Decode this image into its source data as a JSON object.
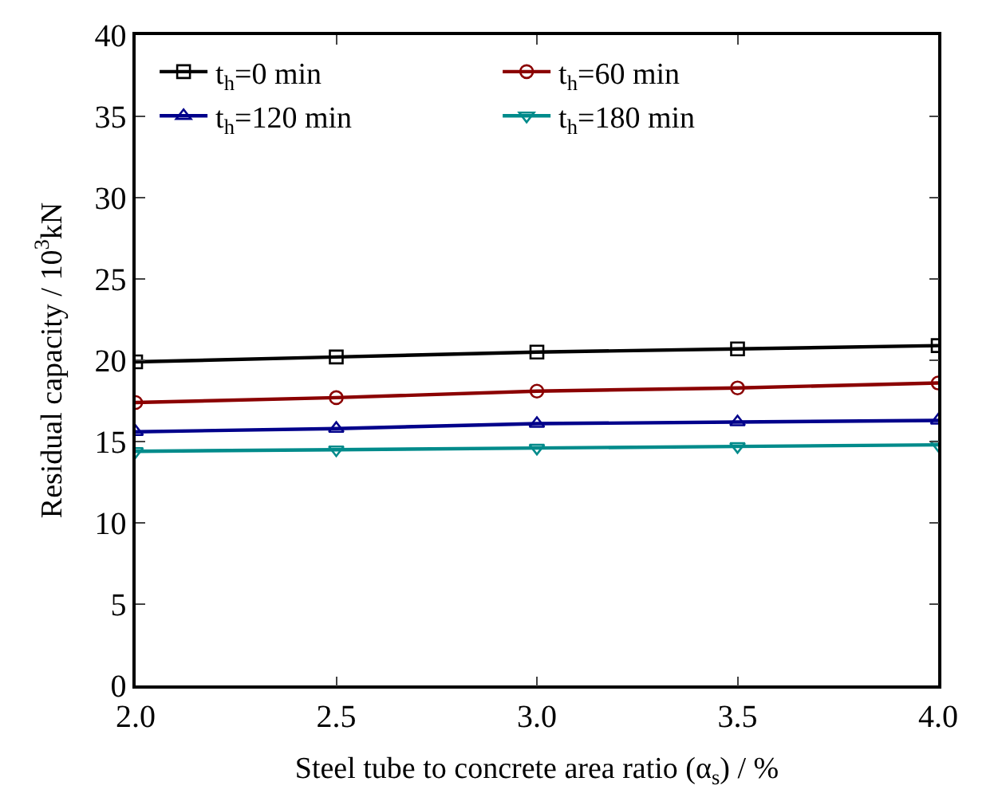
{
  "chart_data": {
    "type": "line",
    "xlabel": "Steel tube to concrete area ratio (α$_{s}$) / %",
    "ylabel": "Residual capacity / 10$^{3}$kN",
    "x": [
      2.0,
      2.5,
      3.0,
      3.5,
      4.0
    ],
    "series": [
      {
        "name": "t$_{h}$=0 min",
        "color": "#000000",
        "marker": "square",
        "values": [
          19.9,
          20.2,
          20.5,
          20.7,
          20.9
        ]
      },
      {
        "name": "t$_{h}$=60 min",
        "color": "#8b0000",
        "marker": "circle",
        "values": [
          17.4,
          17.7,
          18.1,
          18.3,
          18.6
        ]
      },
      {
        "name": "t$_{h}$=120 min",
        "color": "#00008b",
        "marker": "triangle",
        "values": [
          15.6,
          15.8,
          16.1,
          16.2,
          16.3
        ]
      },
      {
        "name": "t$_{h}$=180 min",
        "color": "#008b8b",
        "marker": "triangle-down",
        "values": [
          14.4,
          14.5,
          14.6,
          14.7,
          14.8
        ]
      }
    ],
    "xlim": [
      2.0,
      4.0
    ],
    "xticks": [
      {
        "value": 2.0,
        "label": "2.0"
      },
      {
        "value": 2.5,
        "label": "2.5"
      },
      {
        "value": 3.0,
        "label": "3.0"
      },
      {
        "value": 3.5,
        "label": "3.5"
      },
      {
        "value": 4.0,
        "label": "4.0"
      }
    ],
    "ylim": [
      0,
      40
    ],
    "yticks": [
      0,
      5,
      10,
      15,
      20,
      25,
      30,
      35,
      40
    ],
    "legend": "top left",
    "line_style": "solid"
  }
}
